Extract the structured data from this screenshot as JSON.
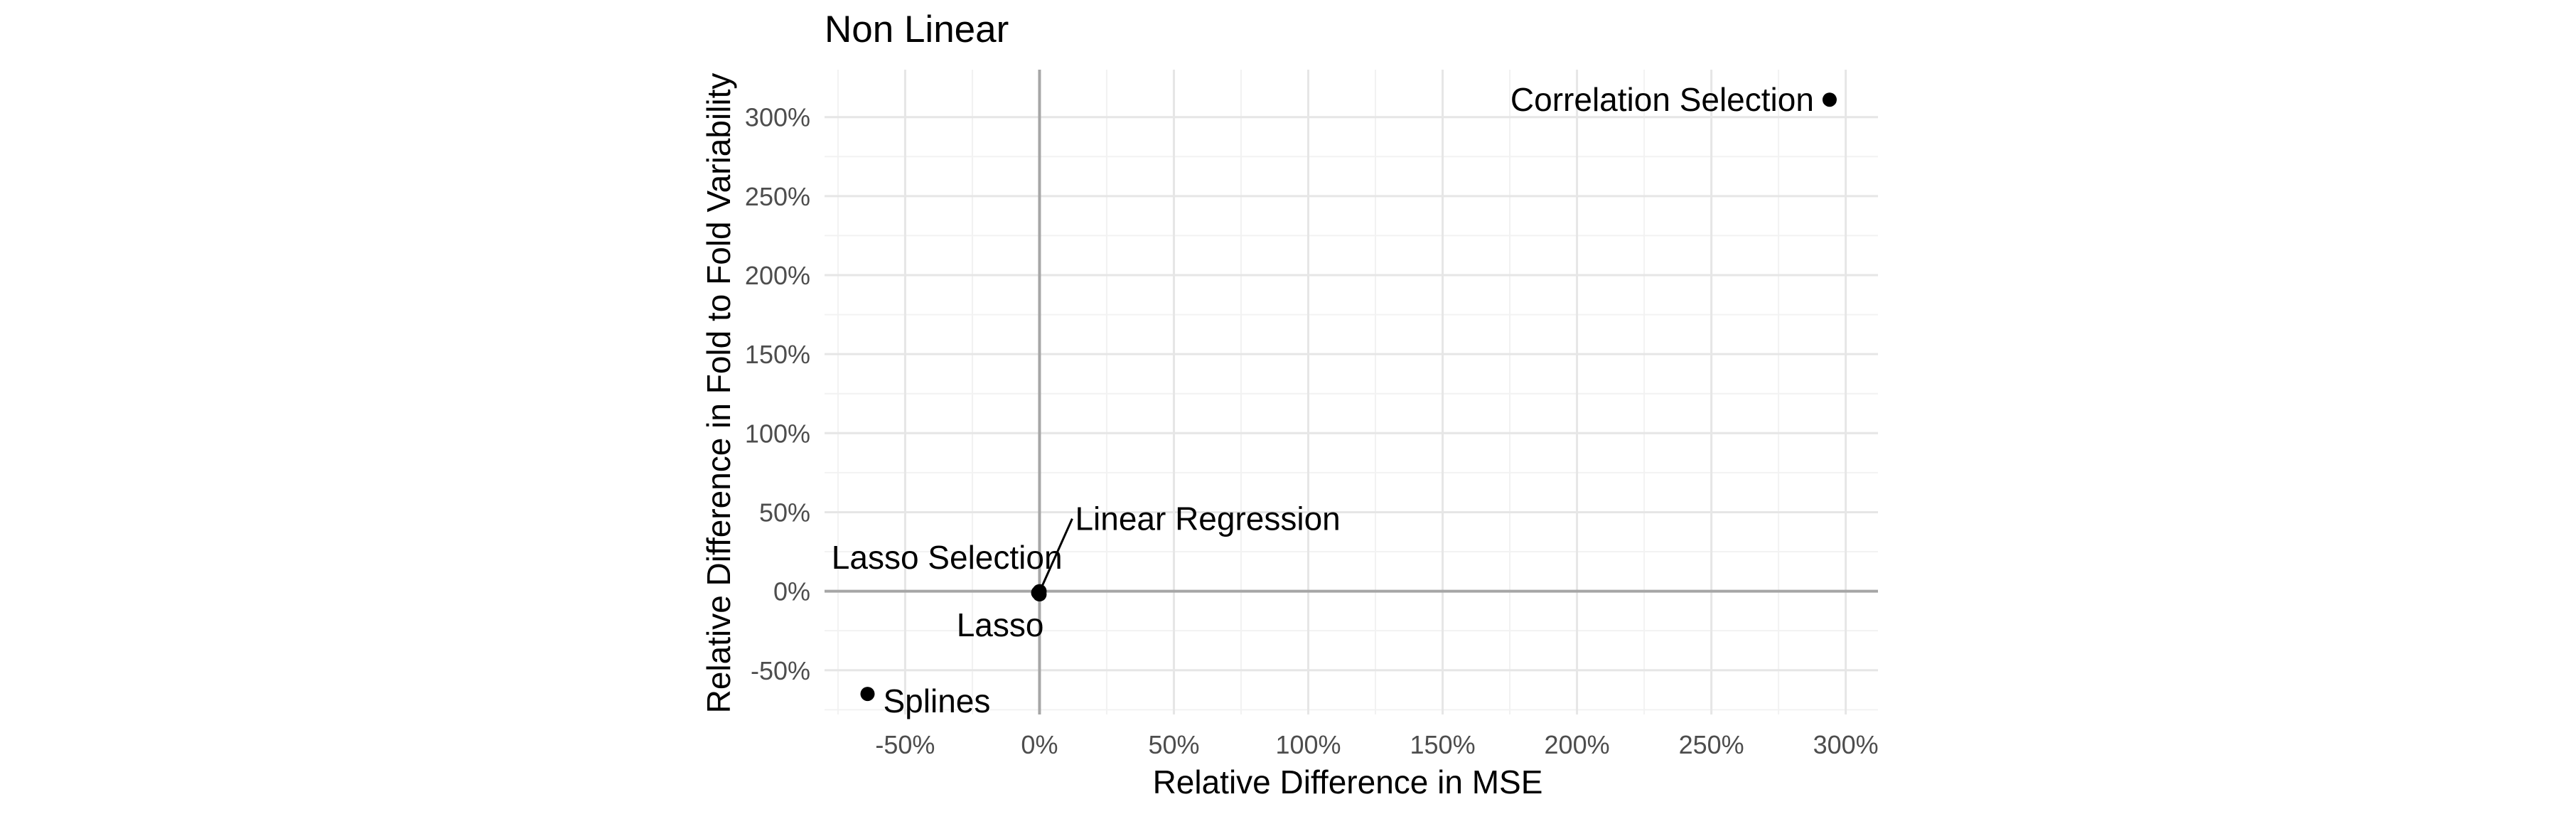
{
  "chart_data": {
    "type": "scatter",
    "title": "Non Linear",
    "xlabel": "Relative Difference in MSE",
    "ylabel": "Relative Difference in Fold to Fold Variability",
    "xlim": [
      -80,
      312
    ],
    "ylim": [
      -78,
      330
    ],
    "x_ticks": [
      -50,
      0,
      50,
      100,
      150,
      200,
      250,
      300
    ],
    "x_tick_labels": [
      "-50%",
      "0%",
      "50%",
      "100%",
      "150%",
      "200%",
      "250%",
      "300%"
    ],
    "y_ticks": [
      -50,
      0,
      50,
      100,
      150,
      200,
      250,
      300
    ],
    "y_tick_labels": [
      "-50%",
      "0%",
      "50%",
      "100%",
      "150%",
      "200%",
      "250%",
      "300%"
    ],
    "grid": true,
    "reference_lines": {
      "x": 0,
      "y": 0
    },
    "points": [
      {
        "label": "Correlation Selection",
        "x": 294,
        "y": 311
      },
      {
        "label": "Linear Regression",
        "x": 0,
        "y": 0
      },
      {
        "label": "Lasso Selection",
        "x": -0.5,
        "y": -1
      },
      {
        "label": "Lasso",
        "x": 0,
        "y": -2
      },
      {
        "label": "Splines",
        "x": -64,
        "y": -65
      }
    ]
  }
}
